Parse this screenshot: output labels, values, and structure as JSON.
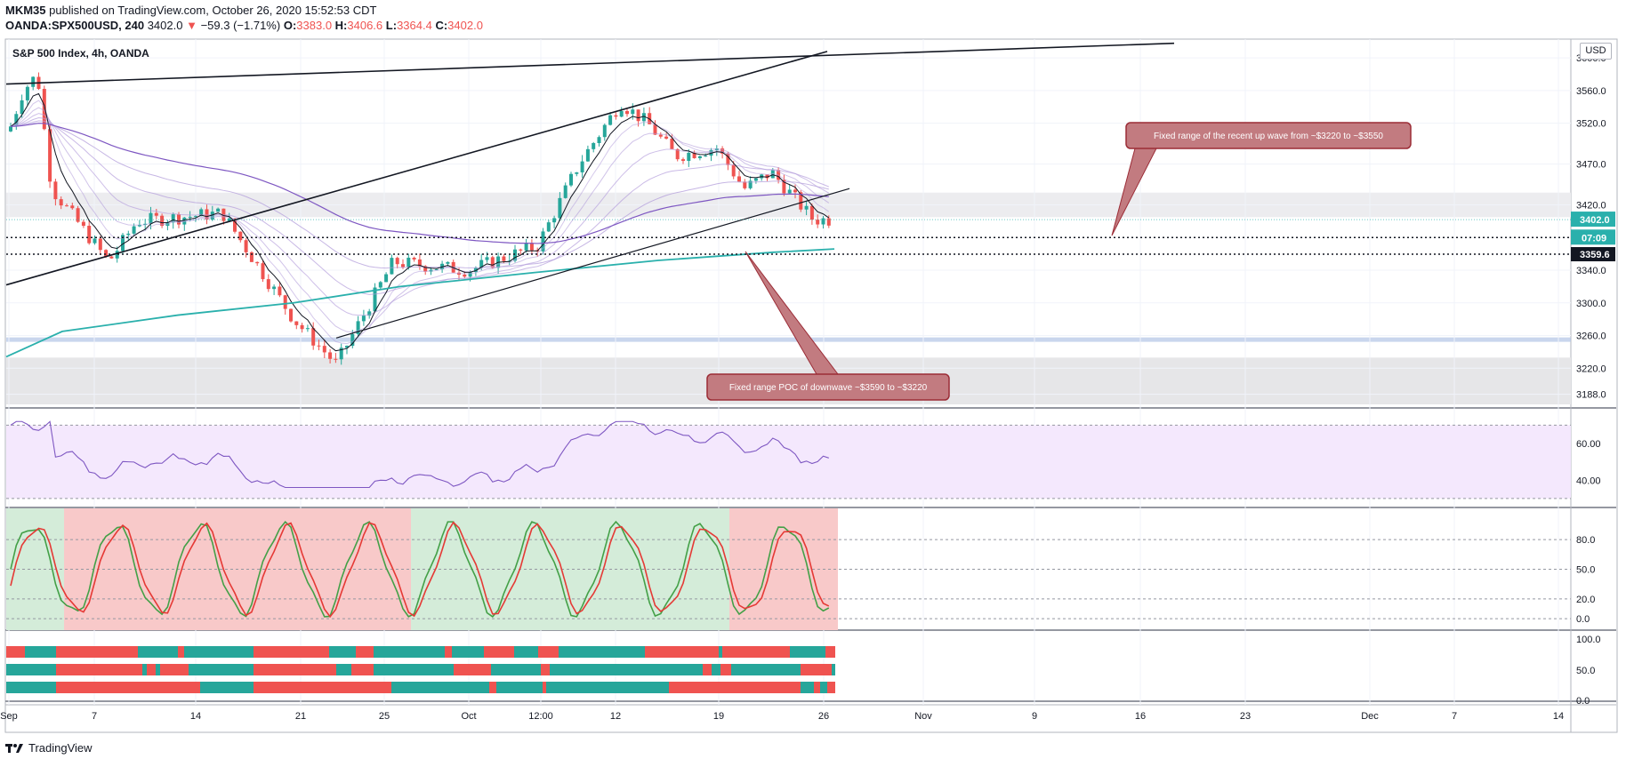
{
  "header": {
    "author": "MKM35",
    "published": "published on TradingView.com, October 26, 2020 15:52:53 CDT",
    "symbol": "OANDA:SPX500USD, 240",
    "last": "3402.0",
    "change": "−59.3 (−1.71%)",
    "o_label": "O:",
    "o": "3383.0",
    "h_label": "H:",
    "h": "3406.6",
    "l_label": "L:",
    "l": "3364.4",
    "c_label": "C:",
    "c": "3402.0"
  },
  "pane_title": "S&P 500 Index, 4h, OANDA",
  "currency": "USD",
  "price_labels": {
    "last": "3402.0",
    "countdown": "07:09",
    "level": "3359.6"
  },
  "annotations": {
    "up_wave": "Fixed range of the recent up wave from ~$3220 to ~$3550",
    "poc": "Fixed range POC of downwave ~$3590 to ~$3220"
  },
  "footer": {
    "brand": "TradingView"
  },
  "colors": {
    "up": "#26a69a",
    "down": "#ef5350",
    "ma200": "#2ab0ac",
    "rsi": "#7e57c2",
    "stoch_k": "#43a047",
    "stoch_d": "#e53935",
    "annotation_bg": "#c27b80",
    "annotation_border": "#9b2c36"
  },
  "chart_data": [
    {
      "type": "candlestick",
      "title": "S&P 500 Index, 4h, OANDA",
      "x_ticks": [
        "Sep",
        "7",
        "14",
        "21",
        "25",
        "Oct",
        "12:00",
        "12",
        "19",
        "26",
        "Nov",
        "9",
        "16",
        "23",
        "Dec",
        "7",
        "14"
      ],
      "y_ticks": [
        3188.0,
        3220.0,
        3260.0,
        3300.0,
        3340.0,
        3420.0,
        3470.0,
        3520.0,
        3560.0,
        3600.0
      ],
      "ylim": [
        3180,
        3610
      ],
      "approx_close_path": [
        {
          "x": "Sep 1",
          "y": 3510
        },
        {
          "x": "Sep 2",
          "y": 3560
        },
        {
          "x": "Sep 3",
          "y": 3580
        },
        {
          "x": "Sep 4",
          "y": 3440
        },
        {
          "x": "Sep 8",
          "y": 3350
        },
        {
          "x": "Sep 10",
          "y": 3400
        },
        {
          "x": "Sep 16",
          "y": 3410
        },
        {
          "x": "Sep 21",
          "y": 3280
        },
        {
          "x": "Sep 24",
          "y": 3225
        },
        {
          "x": "Sep 28",
          "y": 3350
        },
        {
          "x": "Oct 1",
          "y": 3340
        },
        {
          "x": "Oct 6",
          "y": 3370
        },
        {
          "x": "Oct 9",
          "y": 3470
        },
        {
          "x": "Oct 12",
          "y": 3545
        },
        {
          "x": "Oct 14",
          "y": 3520
        },
        {
          "x": "Oct 16",
          "y": 3480
        },
        {
          "x": "Oct 19",
          "y": 3490
        },
        {
          "x": "Oct 21",
          "y": 3440
        },
        {
          "x": "Oct 23",
          "y": 3460
        },
        {
          "x": "Oct 26",
          "y": 3402
        }
      ],
      "hlines": [
        3359.6,
        3380
      ]
    },
    {
      "type": "line",
      "name": "RSI",
      "y_ticks": [
        40.0,
        60.0
      ],
      "ylim": [
        28,
        76
      ]
    },
    {
      "type": "line",
      "name": "Stochastic",
      "y_ticks": [
        0.0,
        20.0,
        50.0,
        80.0
      ],
      "ylim": [
        -8,
        108
      ]
    },
    {
      "type": "bar",
      "name": "Trend ribbons",
      "y_ticks": [
        0.0,
        50.0,
        100.0
      ],
      "rows": 3
    }
  ]
}
